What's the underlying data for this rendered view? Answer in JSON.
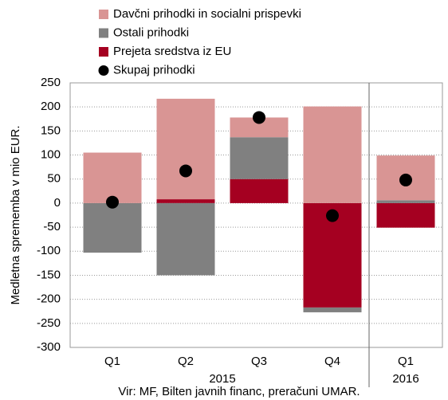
{
  "chart_data": {
    "type": "stacked_bar",
    "y_label": "Medletna sprememba v mio EUR.",
    "source": "Vir: MF, Bilten javnih financ, preračuni UMAR.",
    "groups": [
      {
        "label": "2015",
        "categories": [
          "Q1",
          "Q2",
          "Q3",
          "Q4"
        ]
      },
      {
        "label": "2016",
        "categories": [
          "Q1"
        ]
      }
    ],
    "series": [
      {
        "name": "Davčni prihodki in socialni prispevki",
        "color": "#d99594",
        "values": [
          105,
          209,
          41,
          201,
          93
        ]
      },
      {
        "name": "Ostali prihodki",
        "color": "#808080",
        "values": [
          -103,
          -150,
          87,
          -10,
          6
        ]
      },
      {
        "name": "Prejeta sredstva iz EU",
        "color": "#a50021",
        "values": [
          0,
          8,
          50,
          -217,
          -51
        ]
      }
    ],
    "total": {
      "name": "Skupaj prihodki",
      "color": "#000000",
      "values": [
        2,
        67,
        178,
        -26,
        48
      ]
    },
    "ylim": [
      -300,
      250
    ],
    "yticks": [
      -300,
      -250,
      -200,
      -150,
      -100,
      -50,
      0,
      50,
      100,
      150,
      200,
      250
    ],
    "grid": true
  }
}
